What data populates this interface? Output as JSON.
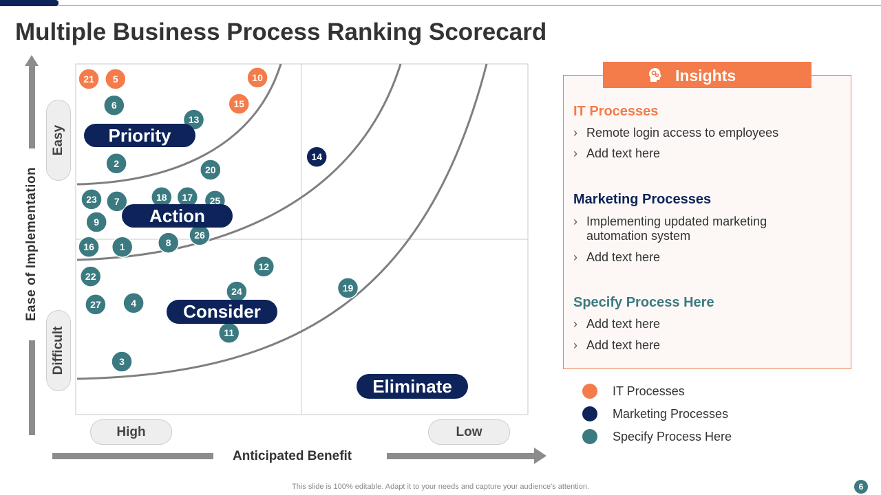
{
  "title": "Multiple Business Process Ranking Scorecard",
  "colors": {
    "it": "#f47b4a",
    "marketing": "#0d2359",
    "specify": "#3b7a80",
    "navy": "#0d2359",
    "orange": "#f47b4a"
  },
  "axes": {
    "y_label": "Ease of Implementation",
    "y_top": "Easy",
    "y_bottom": "Difficult",
    "x_label": "Anticipated Benefit",
    "x_left": "High",
    "x_right": "Low"
  },
  "zones": {
    "priority": "Priority",
    "action": "Action",
    "consider": "Consider",
    "eliminate": "Eliminate"
  },
  "chart_data": {
    "type": "scatter",
    "xlabel": "Anticipated Benefit",
    "ylabel": "Ease of Implementation",
    "x_direction": "High to Low (left to right)",
    "y_direction": "Difficult to Easy (bottom to top)",
    "quadrant_grid": "2x2",
    "x_range": [
      0,
      100
    ],
    "y_range": [
      0,
      100
    ],
    "categories": [
      "IT Processes",
      "Marketing Processes",
      "Specify Process Here"
    ],
    "points": [
      {
        "id": "21",
        "group": "it",
        "x": 2.9,
        "y": 95.7
      },
      {
        "id": "5",
        "group": "it",
        "x": 8.8,
        "y": 95.7
      },
      {
        "id": "10",
        "group": "it",
        "x": 40.2,
        "y": 96.1
      },
      {
        "id": "15",
        "group": "it",
        "x": 36.1,
        "y": 88.6
      },
      {
        "id": "6",
        "group": "specify",
        "x": 8.5,
        "y": 88.2
      },
      {
        "id": "13",
        "group": "specify",
        "x": 26.1,
        "y": 84.1
      },
      {
        "id": "2",
        "group": "specify",
        "x": 9.0,
        "y": 71.6
      },
      {
        "id": "20",
        "group": "specify",
        "x": 29.8,
        "y": 69.8
      },
      {
        "id": "14",
        "group": "marketing",
        "x": 53.3,
        "y": 73.5
      },
      {
        "id": "23",
        "group": "specify",
        "x": 3.5,
        "y": 61.4
      },
      {
        "id": "7",
        "group": "specify",
        "x": 9.1,
        "y": 60.8
      },
      {
        "id": "18",
        "group": "specify",
        "x": 19.0,
        "y": 62.0
      },
      {
        "id": "17",
        "group": "specify",
        "x": 24.7,
        "y": 62.0
      },
      {
        "id": "25",
        "group": "specify",
        "x": 30.8,
        "y": 61.0
      },
      {
        "id": "9",
        "group": "specify",
        "x": 4.6,
        "y": 54.9
      },
      {
        "id": "26",
        "group": "specify",
        "x": 27.4,
        "y": 51.2
      },
      {
        "id": "16",
        "group": "specify",
        "x": 2.9,
        "y": 47.8
      },
      {
        "id": "1",
        "group": "specify",
        "x": 10.3,
        "y": 47.8
      },
      {
        "id": "8",
        "group": "specify",
        "x": 20.5,
        "y": 49.0
      },
      {
        "id": "12",
        "group": "specify",
        "x": 41.6,
        "y": 42.2
      },
      {
        "id": "22",
        "group": "specify",
        "x": 3.3,
        "y": 39.4
      },
      {
        "id": "19",
        "group": "specify",
        "x": 60.2,
        "y": 36.1
      },
      {
        "id": "24",
        "group": "specify",
        "x": 35.6,
        "y": 35.1
      },
      {
        "id": "27",
        "group": "specify",
        "x": 4.4,
        "y": 31.4
      },
      {
        "id": "4",
        "group": "specify",
        "x": 12.8,
        "y": 31.8
      },
      {
        "id": "11",
        "group": "specify",
        "x": 33.9,
        "y": 23.3
      },
      {
        "id": "3",
        "group": "specify",
        "x": 10.2,
        "y": 15.1
      }
    ]
  },
  "insights": {
    "header": "Insights",
    "sections": [
      {
        "title": "IT Processes",
        "color": "#f47b4a",
        "bullets": [
          "Remote login access to employees",
          "Add text here"
        ]
      },
      {
        "title": "Marketing Processes",
        "color": "#0d2359",
        "bullets": [
          "Implementing updated marketing automation system",
          "Add text here"
        ]
      },
      {
        "title": "Specify Process Here",
        "color": "#3b7a80",
        "bullets": [
          "Add text here",
          "Add text here"
        ]
      }
    ]
  },
  "legend": [
    {
      "label": "IT Processes",
      "color": "#f47b4a"
    },
    {
      "label": "Marketing Processes",
      "color": "#0d2359"
    },
    {
      "label": "Specify Process Here",
      "color": "#3b7a80"
    }
  ],
  "footer": "This slide is 100% editable. Adapt it to your needs and capture your audience's attention.",
  "page_number": "6"
}
